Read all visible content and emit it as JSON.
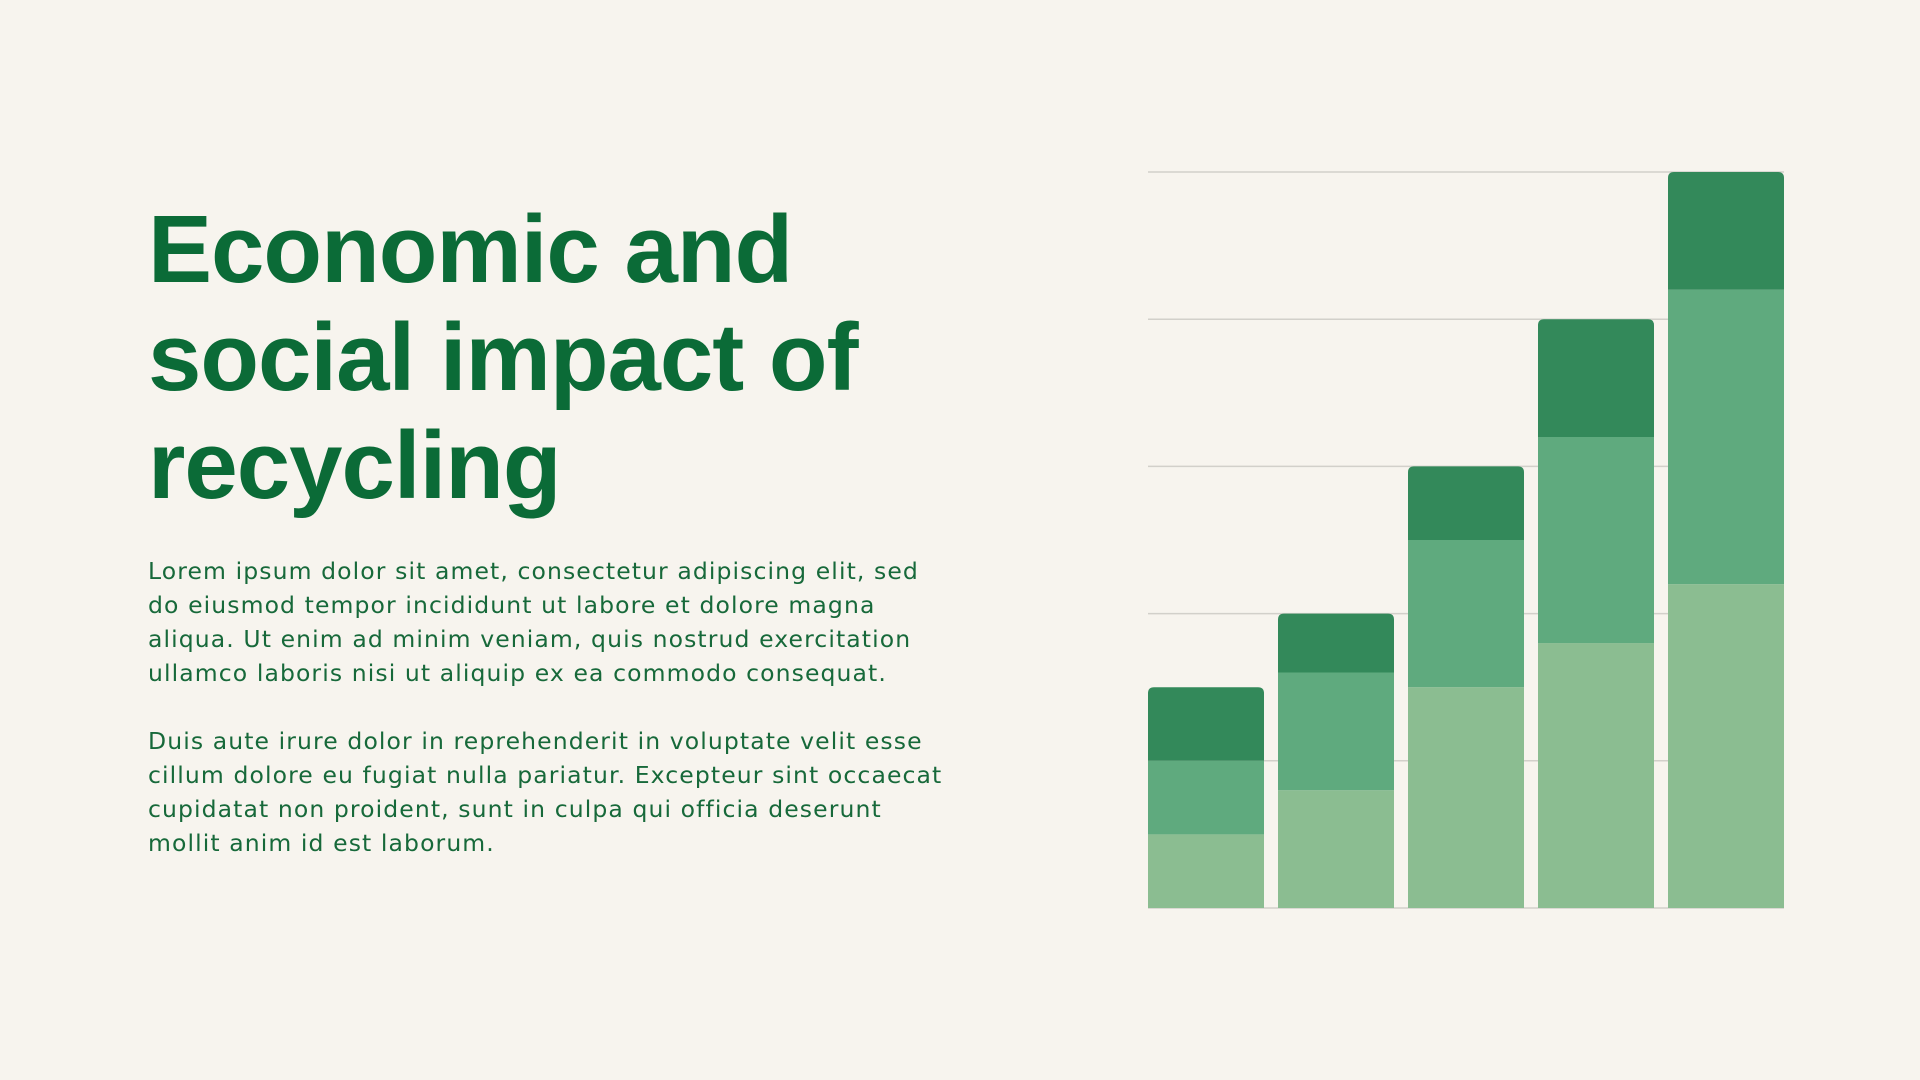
{
  "slide": {
    "title_lines": [
      "Economic and",
      "social impact of",
      "recycling"
    ],
    "paragraphs": [
      "Lorem ipsum dolor sit amet, consectetur adipiscing elit, sed do eiusmod tempor incididunt ut labore et dolore magna aliqua. Ut enim ad minim veniam, quis nostrud exercitation ullamco laboris nisi ut aliquip ex ea commodo consequat.",
      "Duis aute irure dolor in reprehenderit in voluptate velit esse cillum dolore eu fugiat nulla pariatur. Excepteur sint occaecat cupidatat non proident, sunt in culpa qui officia deserunt mollit anim id est laborum."
    ],
    "colors": {
      "background": "#F7F4EE",
      "title": "#0B6B37",
      "body": "#17693A"
    }
  },
  "chart_data": {
    "type": "bar",
    "stacked": true,
    "categories": [
      "",
      "",
      "",
      "",
      ""
    ],
    "series": [
      {
        "values": [
          0.5,
          0.8,
          1.5,
          1.8,
          2.2
        ],
        "color": "#8BBD91"
      },
      {
        "values": [
          0.5,
          0.8,
          1.0,
          1.4,
          2.0
        ],
        "color": "#5FAA7E"
      },
      {
        "values": [
          0.5,
          0.4,
          0.5,
          0.8,
          0.8
        ],
        "color": "#33895A"
      }
    ],
    "ylim": [
      0,
      5
    ],
    "gridlines": [
      1,
      2,
      3,
      4,
      5
    ],
    "grid": true,
    "gridline_color": "#D2D0CA",
    "axis_labels_visible": false,
    "legend": "none"
  }
}
